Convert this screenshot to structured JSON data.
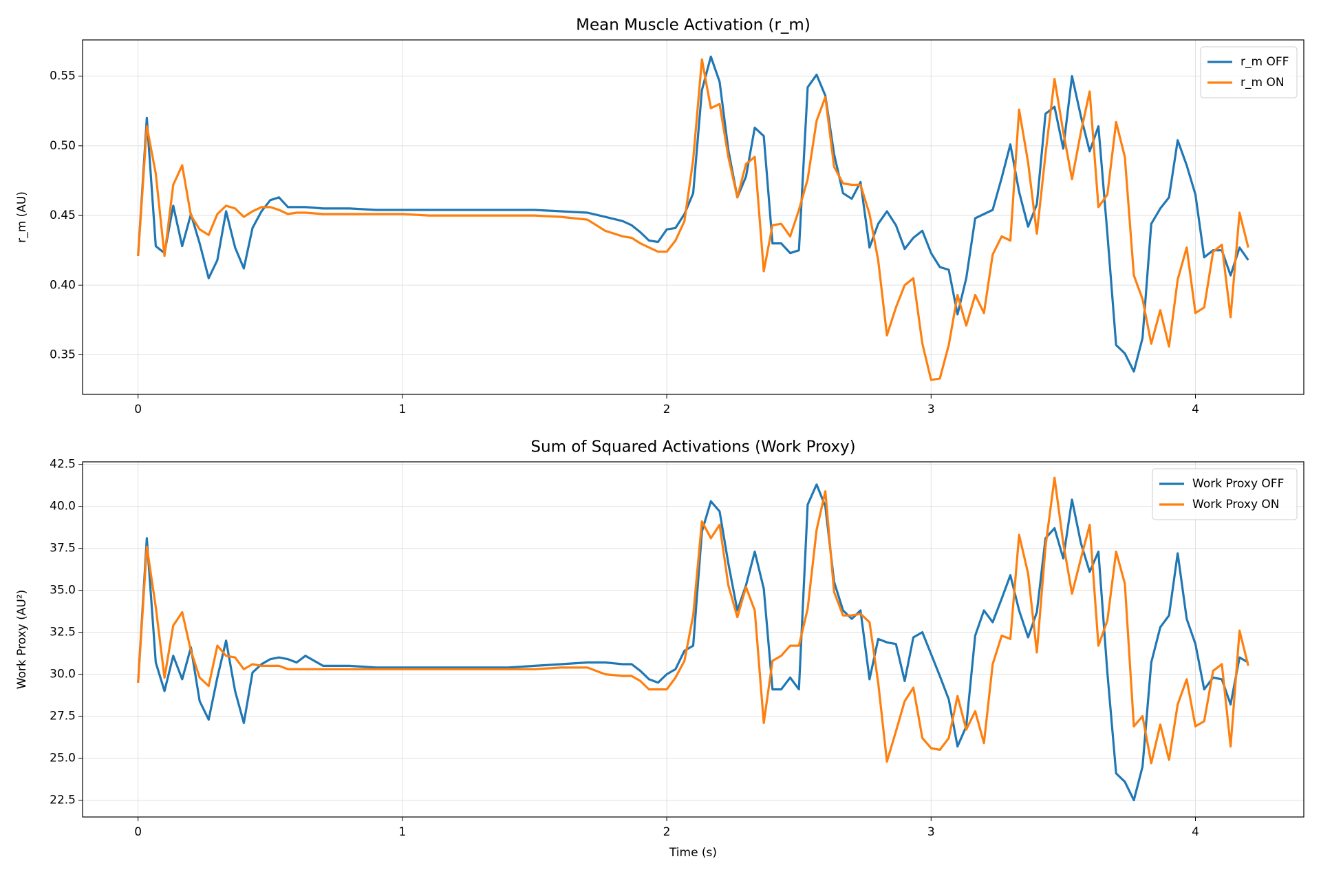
{
  "chart_data": [
    {
      "type": "line",
      "title": "Mean Muscle Activation (r_m)",
      "ylabel": "r_m (AU)",
      "legend": "upper right",
      "grid": true,
      "xlim": [
        -0.21,
        4.41
      ],
      "xticks": [
        0,
        1,
        2,
        3,
        4
      ],
      "ylim": [
        0.3216,
        0.576
      ],
      "yticks": [
        0.35,
        {
          "value": 0.4,
          "label": "0.40"
        },
        0.45,
        {
          "value": 0.5,
          "label": "0.50"
        },
        0.55
      ],
      "x": [
        0,
        0.033,
        0.067,
        0.1,
        0.133,
        0.167,
        0.2,
        0.233,
        0.267,
        0.3,
        0.333,
        0.367,
        0.4,
        0.433,
        0.467,
        0.5,
        0.533,
        0.567,
        0.6,
        0.633,
        0.7,
        0.8,
        0.9,
        1.0,
        1.1,
        1.2,
        1.3,
        1.4,
        1.5,
        1.6,
        1.7,
        1.767,
        1.833,
        1.867,
        1.9,
        1.933,
        1.967,
        2.0,
        2.033,
        2.067,
        2.1,
        2.133,
        2.167,
        2.2,
        2.233,
        2.267,
        2.3,
        2.333,
        2.367,
        2.4,
        2.433,
        2.467,
        2.5,
        2.533,
        2.567,
        2.6,
        2.633,
        2.667,
        2.7,
        2.733,
        2.767,
        2.8,
        2.833,
        2.867,
        2.9,
        2.933,
        2.967,
        3.0,
        3.033,
        3.067,
        3.1,
        3.133,
        3.167,
        3.2,
        3.233,
        3.267,
        3.3,
        3.333,
        3.367,
        3.4,
        3.433,
        3.467,
        3.5,
        3.533,
        3.567,
        3.6,
        3.633,
        3.667,
        3.7,
        3.733,
        3.767,
        3.8,
        3.833,
        3.867,
        3.9,
        3.933,
        3.967,
        4.0,
        4.033,
        4.067,
        4.1,
        4.133,
        4.167,
        4.2
      ],
      "series": [
        {
          "name": "r_m OFF",
          "color": "#1f77b4",
          "values": [
            0.421,
            0.52,
            0.428,
            0.423,
            0.457,
            0.428,
            0.451,
            0.43,
            0.405,
            0.418,
            0.453,
            0.427,
            0.412,
            0.441,
            0.453,
            0.461,
            0.463,
            0.456,
            0.456,
            0.456,
            0.455,
            0.455,
            0.454,
            0.454,
            0.454,
            0.454,
            0.454,
            0.454,
            0.454,
            0.453,
            0.452,
            0.449,
            0.446,
            0.443,
            0.438,
            0.432,
            0.431,
            0.44,
            0.441,
            0.451,
            0.466,
            0.54,
            0.564,
            0.546,
            0.497,
            0.463,
            0.478,
            0.513,
            0.507,
            0.43,
            0.43,
            0.423,
            0.425,
            0.542,
            0.551,
            0.536,
            0.494,
            0.466,
            0.462,
            0.474,
            0.427,
            0.444,
            0.453,
            0.443,
            0.426,
            0.434,
            0.439,
            0.423,
            0.413,
            0.411,
            0.379,
            0.405,
            0.448,
            0.451,
            0.454,
            0.477,
            0.501,
            0.467,
            0.442,
            0.458,
            0.523,
            0.528,
            0.498,
            0.55,
            0.521,
            0.496,
            0.514,
            0.437,
            0.357,
            0.351,
            0.338,
            0.362,
            0.444,
            0.455,
            0.463,
            0.504,
            0.486,
            0.465,
            0.42,
            0.425,
            0.425,
            0.407,
            0.427,
            0.418
          ]
        },
        {
          "name": "r_m ON",
          "color": "#ff7f0e",
          "values": [
            0.421,
            0.514,
            0.48,
            0.421,
            0.472,
            0.486,
            0.45,
            0.44,
            0.436,
            0.451,
            0.457,
            0.455,
            0.449,
            0.453,
            0.456,
            0.456,
            0.454,
            0.451,
            0.452,
            0.452,
            0.451,
            0.451,
            0.451,
            0.451,
            0.45,
            0.45,
            0.45,
            0.45,
            0.45,
            0.449,
            0.447,
            0.439,
            0.435,
            0.434,
            0.43,
            0.427,
            0.424,
            0.424,
            0.432,
            0.446,
            0.49,
            0.562,
            0.527,
            0.53,
            0.492,
            0.463,
            0.487,
            0.492,
            0.41,
            0.443,
            0.444,
            0.435,
            0.454,
            0.476,
            0.518,
            0.535,
            0.485,
            0.473,
            0.472,
            0.472,
            0.451,
            0.418,
            0.364,
            0.384,
            0.4,
            0.405,
            0.358,
            0.332,
            0.333,
            0.357,
            0.393,
            0.371,
            0.393,
            0.38,
            0.422,
            0.435,
            0.432,
            0.526,
            0.488,
            0.437,
            0.494,
            0.548,
            0.51,
            0.476,
            0.51,
            0.539,
            0.456,
            0.465,
            0.517,
            0.492,
            0.407,
            0.39,
            0.358,
            0.382,
            0.356,
            0.404,
            0.427,
            0.38,
            0.384,
            0.424,
            0.429,
            0.377,
            0.452,
            0.427
          ]
        }
      ]
    },
    {
      "type": "line",
      "title": "Sum of Squared Activations (Work Proxy)",
      "xlabel": "Time (s)",
      "ylabel": "Work Proxy (AU²)",
      "legend": "upper right",
      "grid": true,
      "xlim": [
        -0.21,
        4.41
      ],
      "xticks": [
        0,
        1,
        2,
        3,
        4
      ],
      "ylim": [
        21.5,
        42.65
      ],
      "yticks": [
        22.5,
        {
          "value": 25,
          "label": "25.0"
        },
        27.5,
        {
          "value": 30,
          "label": "30.0"
        },
        32.5,
        {
          "value": 35,
          "label": "35.0"
        },
        37.5,
        {
          "value": 40,
          "label": "40.0"
        },
        42.5
      ],
      "x": [
        0,
        0.033,
        0.067,
        0.1,
        0.133,
        0.167,
        0.2,
        0.233,
        0.267,
        0.3,
        0.333,
        0.367,
        0.4,
        0.433,
        0.467,
        0.5,
        0.533,
        0.567,
        0.6,
        0.633,
        0.7,
        0.8,
        0.9,
        1.0,
        1.1,
        1.2,
        1.3,
        1.4,
        1.5,
        1.6,
        1.7,
        1.767,
        1.833,
        1.867,
        1.9,
        1.933,
        1.967,
        2.0,
        2.033,
        2.067,
        2.1,
        2.133,
        2.167,
        2.2,
        2.233,
        2.267,
        2.3,
        2.333,
        2.367,
        2.4,
        2.433,
        2.467,
        2.5,
        2.533,
        2.567,
        2.6,
        2.633,
        2.667,
        2.7,
        2.733,
        2.767,
        2.8,
        2.833,
        2.867,
        2.9,
        2.933,
        2.967,
        3.0,
        3.033,
        3.067,
        3.1,
        3.133,
        3.167,
        3.2,
        3.233,
        3.267,
        3.3,
        3.333,
        3.367,
        3.4,
        3.433,
        3.467,
        3.5,
        3.533,
        3.567,
        3.6,
        3.633,
        3.667,
        3.7,
        3.733,
        3.767,
        3.8,
        3.833,
        3.867,
        3.9,
        3.933,
        3.967,
        4.0,
        4.033,
        4.067,
        4.1,
        4.133,
        4.167,
        4.2
      ],
      "series": [
        {
          "name": "Work Proxy OFF",
          "color": "#1f77b4",
          "values": [
            29.5,
            38.1,
            30.7,
            29.0,
            31.1,
            29.7,
            31.6,
            28.4,
            27.3,
            29.8,
            32.0,
            29.0,
            27.1,
            30.1,
            30.6,
            30.9,
            31.0,
            30.9,
            30.7,
            31.1,
            30.5,
            30.5,
            30.4,
            30.4,
            30.4,
            30.4,
            30.4,
            30.4,
            30.5,
            30.6,
            30.7,
            30.7,
            30.6,
            30.6,
            30.2,
            29.7,
            29.5,
            30.0,
            30.3,
            31.4,
            31.7,
            38.5,
            40.3,
            39.7,
            36.6,
            33.8,
            35.3,
            37.3,
            35.1,
            29.1,
            29.1,
            29.8,
            29.1,
            40.1,
            41.3,
            40.0,
            35.5,
            33.8,
            33.3,
            33.8,
            29.7,
            32.1,
            31.9,
            31.8,
            29.6,
            32.2,
            32.5,
            31.2,
            29.9,
            28.5,
            25.7,
            26.9,
            32.3,
            33.8,
            33.1,
            34.5,
            35.9,
            33.8,
            32.2,
            33.7,
            38.1,
            38.7,
            36.9,
            40.4,
            37.8,
            36.1,
            37.3,
            30.1,
            24.1,
            23.6,
            22.5,
            24.5,
            30.7,
            32.8,
            33.5,
            37.2,
            33.3,
            31.8,
            29.1,
            29.8,
            29.7,
            28.2,
            31.0,
            30.7
          ]
        },
        {
          "name": "Work Proxy ON",
          "color": "#ff7f0e",
          "values": [
            29.5,
            37.6,
            34.0,
            29.8,
            32.9,
            33.7,
            31.4,
            29.8,
            29.3,
            31.7,
            31.1,
            31.0,
            30.3,
            30.6,
            30.5,
            30.5,
            30.5,
            30.3,
            30.3,
            30.3,
            30.3,
            30.3,
            30.3,
            30.3,
            30.3,
            30.3,
            30.3,
            30.3,
            30.3,
            30.4,
            30.4,
            30.0,
            29.9,
            29.9,
            29.6,
            29.1,
            29.1,
            29.1,
            29.8,
            30.8,
            33.5,
            39.1,
            38.1,
            38.9,
            35.3,
            33.4,
            35.2,
            33.8,
            27.1,
            30.8,
            31.1,
            31.7,
            31.7,
            33.9,
            38.6,
            40.9,
            34.9,
            33.5,
            33.5,
            33.6,
            33.1,
            29.5,
            24.8,
            26.6,
            28.4,
            29.2,
            26.2,
            25.6,
            25.5,
            26.2,
            28.7,
            26.7,
            27.8,
            25.9,
            30.6,
            32.3,
            32.1,
            38.3,
            36.0,
            31.3,
            37.6,
            41.7,
            37.8,
            34.8,
            36.9,
            38.9,
            31.7,
            33.2,
            37.3,
            35.4,
            26.9,
            27.5,
            24.7,
            27.0,
            24.9,
            28.2,
            29.7,
            26.9,
            27.2,
            30.2,
            30.6,
            25.7,
            32.6,
            30.5
          ]
        }
      ]
    }
  ]
}
